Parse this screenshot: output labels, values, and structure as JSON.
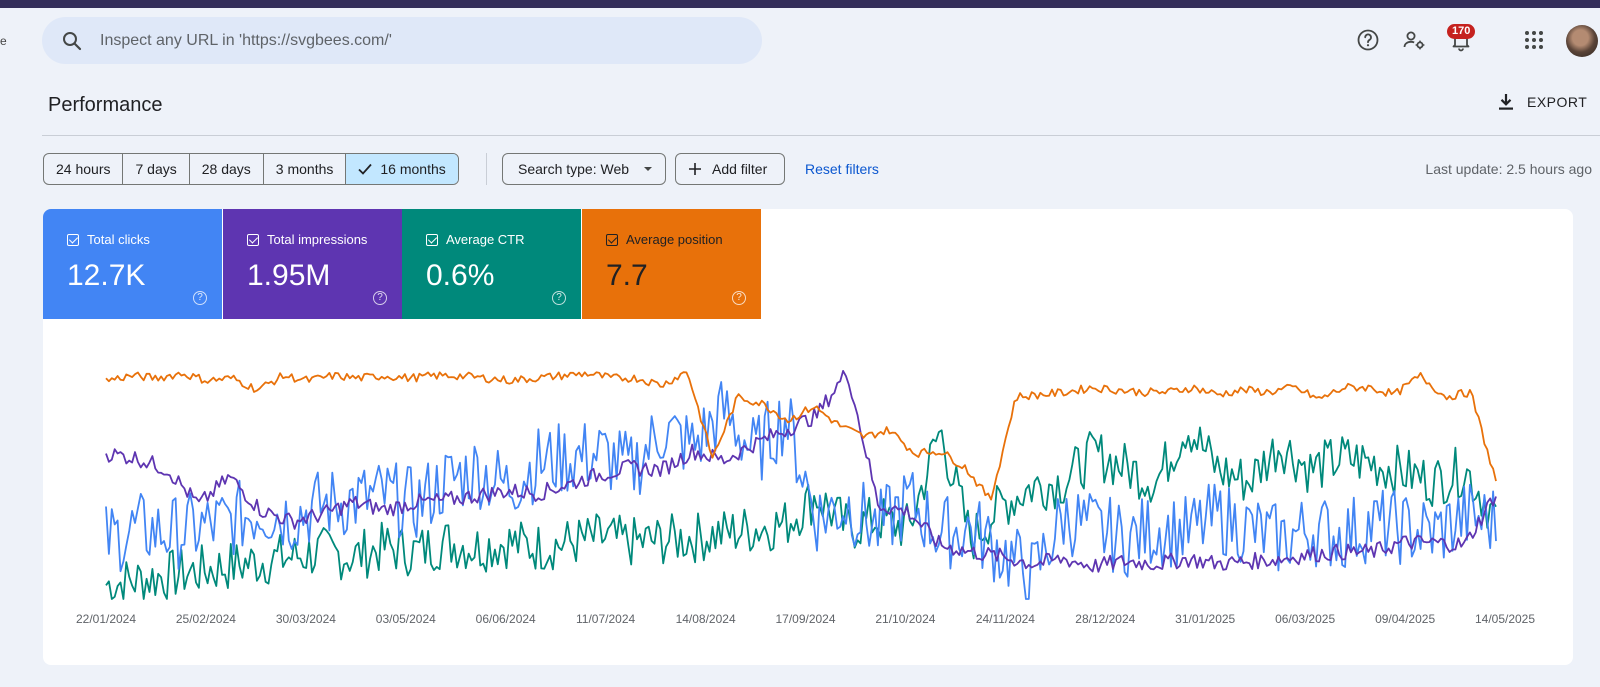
{
  "header": {
    "search_placeholder": "Inspect any URL in 'https://svgbees.com/'",
    "notifications_count": "170",
    "left_edge_glyph": "e"
  },
  "page": {
    "title": "Performance",
    "export_label": "EXPORT"
  },
  "filters": {
    "ranges": [
      "24 hours",
      "7 days",
      "28 days",
      "3 months",
      "16 months"
    ],
    "selected_range": "16 months",
    "search_type": "Search type: Web",
    "add_filter": "Add filter",
    "reset_filters": "Reset filters",
    "last_update": "Last update: 2.5 hours ago"
  },
  "metrics": [
    {
      "label": "Total clicks",
      "value": "12.7K",
      "color": "#4285f4"
    },
    {
      "label": "Total impressions",
      "value": "1.95M",
      "color": "#5e35b1"
    },
    {
      "label": "Average CTR",
      "value": "0.6%",
      "color": "#00897b"
    },
    {
      "label": "Average position",
      "value": "7.7",
      "color": "#e8710a"
    }
  ],
  "chart_data": {
    "type": "line",
    "x_ticks": [
      "22/01/2024",
      "25/02/2024",
      "30/03/2024",
      "03/05/2024",
      "06/06/2024",
      "11/07/2024",
      "14/08/2024",
      "17/09/2024",
      "21/10/2024",
      "24/11/2024",
      "28/12/2024",
      "31/01/2025",
      "06/03/2025",
      "09/04/2025",
      "14/05/2025"
    ],
    "y_axis": "hidden",
    "grid": false,
    "series_colors": {
      "clicks": "#4285f4",
      "impressions": "#5e35b1",
      "ctr": "#00897b",
      "position": "#e8710a"
    },
    "series_relative": {
      "position": [
        0.93,
        0.95,
        0.94,
        0.96,
        0.93,
        0.94,
        0.89,
        0.95,
        0.93,
        0.95,
        0.94,
        0.95,
        0.94,
        0.95,
        0.95,
        0.94,
        0.93,
        0.94,
        0.95,
        0.96,
        0.94,
        0.94,
        0.91,
        0.97,
        0.6,
        0.86,
        0.83,
        0.76,
        0.82,
        0.74,
        0.69,
        0.72,
        0.62,
        0.63,
        0.56,
        0.42,
        0.86,
        0.87,
        0.88,
        0.9,
        0.89,
        0.88,
        0.88,
        0.9,
        0.87,
        0.89,
        0.88,
        0.9,
        0.85,
        0.9,
        0.9,
        0.87,
        0.95,
        0.86,
        0.88,
        0.5
      ],
      "impressions": [
        0.62,
        0.6,
        0.55,
        0.4,
        0.52,
        0.38,
        0.33,
        0.36,
        0.41,
        0.38,
        0.41,
        0.42,
        0.44,
        0.46,
        0.45,
        0.49,
        0.53,
        0.56,
        0.55,
        0.63,
        0.59,
        0.66,
        0.72,
        0.78,
        0.97,
        0.4,
        0.37,
        0.23,
        0.2,
        0.18,
        0.15,
        0.17,
        0.14,
        0.16,
        0.15,
        0.17,
        0.15,
        0.16,
        0.17,
        0.19,
        0.2,
        0.2,
        0.24,
        0.24,
        0.23,
        0.45
      ],
      "clicks": [
        0.25,
        0.3,
        0.28,
        0.3,
        0.33,
        0.38,
        0.35,
        0.4,
        0.42,
        0.44,
        0.4,
        0.5,
        0.55,
        0.48,
        0.58,
        0.6,
        0.62,
        0.55,
        0.72,
        0.65,
        0.8,
        0.62,
        0.78,
        0.35,
        0.4,
        0.3,
        0.42,
        0.28,
        0.3,
        0.2,
        0.1,
        0.35,
        0.3,
        0.25,
        0.3,
        0.28,
        0.35,
        0.3,
        0.25,
        0.3,
        0.27,
        0.32,
        0.3,
        0.28,
        0.35,
        0.33
      ],
      "ctr": [
        0.06,
        0.08,
        0.1,
        0.12,
        0.14,
        0.16,
        0.18,
        0.2,
        0.18,
        0.22,
        0.2,
        0.24,
        0.22,
        0.24,
        0.22,
        0.24,
        0.26,
        0.24,
        0.25,
        0.26,
        0.28,
        0.3,
        0.32,
        0.44,
        0.3,
        0.34,
        0.3,
        0.72,
        0.25,
        0.4,
        0.48,
        0.5,
        0.62,
        0.56,
        0.5,
        0.74,
        0.55,
        0.5,
        0.66,
        0.55,
        0.6,
        0.58,
        0.54,
        0.5,
        0.55,
        0.35
      ]
    }
  }
}
